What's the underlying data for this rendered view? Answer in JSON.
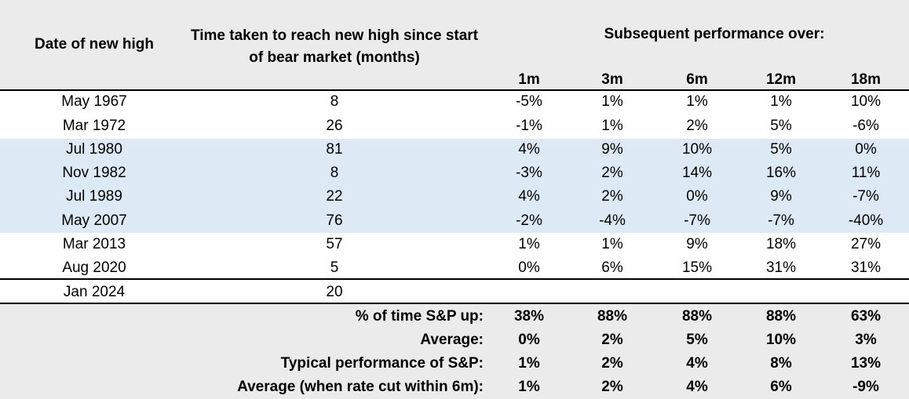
{
  "header": {
    "date_col": "Date of new high",
    "time_col": "Time taken to reach new high since start of bear market (months)",
    "subsequent": "Subsequent performance over:",
    "periods": [
      "1m",
      "3m",
      "6m",
      "12m",
      "18m"
    ]
  },
  "rows": [
    {
      "date": "May 1967",
      "months": "8",
      "perf": [
        "-5%",
        "1%",
        "1%",
        "1%",
        "10%"
      ]
    },
    {
      "date": "Mar 1972",
      "months": "26",
      "perf": [
        "-1%",
        "1%",
        "2%",
        "5%",
        "-6%"
      ]
    },
    {
      "date": "Jul 1980",
      "months": "81",
      "perf": [
        "4%",
        "9%",
        "10%",
        "5%",
        "0%"
      ]
    },
    {
      "date": "Nov 1982",
      "months": "8",
      "perf": [
        "-3%",
        "2%",
        "14%",
        "16%",
        "11%"
      ]
    },
    {
      "date": "Jul 1989",
      "months": "22",
      "perf": [
        "4%",
        "2%",
        "0%",
        "9%",
        "-7%"
      ]
    },
    {
      "date": "May 2007",
      "months": "76",
      "perf": [
        "-2%",
        "-4%",
        "-7%",
        "-7%",
        "-40%"
      ]
    },
    {
      "date": "Mar 2013",
      "months": "57",
      "perf": [
        "1%",
        "1%",
        "9%",
        "18%",
        "27%"
      ]
    },
    {
      "date": "Aug 2020",
      "months": "5",
      "perf": [
        "0%",
        "6%",
        "15%",
        "31%",
        "31%"
      ]
    },
    {
      "date": "Jan 2024",
      "months": "20",
      "perf": [
        "",
        "",
        "",
        "",
        ""
      ]
    }
  ],
  "summary": [
    {
      "label": "% of time S&P up:",
      "values": [
        "38%",
        "88%",
        "88%",
        "88%",
        "63%"
      ]
    },
    {
      "label": "Average:",
      "values": [
        "0%",
        "2%",
        "5%",
        "10%",
        "3%"
      ]
    },
    {
      "label": "Typical performance of S&P:",
      "values": [
        "1%",
        "2%",
        "4%",
        "8%",
        "13%"
      ]
    },
    {
      "label": "Average (when rate cut within 6m):",
      "values": [
        "1%",
        "2%",
        "4%",
        "6%",
        "-9%"
      ]
    }
  ],
  "colors": {
    "header_bg": "#ebebeb",
    "highlight_bg": "#dde9f4",
    "footer_bg": "#ebebeb"
  }
}
